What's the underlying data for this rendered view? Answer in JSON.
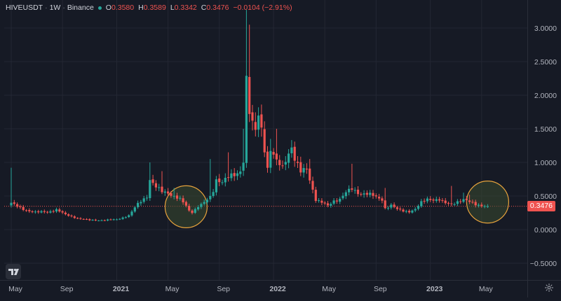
{
  "header": {
    "symbol": "HIVEUSDT",
    "interval": "1W",
    "exchange": "Binance",
    "open_label": "O",
    "open_value": "0.3580",
    "high_label": "H",
    "high_value": "0.3589",
    "low_label": "L",
    "low_value": "0.3342",
    "close_label": "C",
    "close_value": "0.3476",
    "change": "−0.0104 (−2.91%)"
  },
  "last_price_label": "0.3476",
  "colors": {
    "background": "#161a25",
    "grid": "#232733",
    "up": "#26a69a",
    "down": "#ef5350",
    "text": "#b2b5be",
    "circle_stroke": "#e6a23c",
    "circle_fill": "#3a4a2f"
  },
  "icons": {
    "logo": "tradingview-logo-icon",
    "settings": "gear-icon"
  },
  "chart_data": {
    "type": "candlestick",
    "ylim": [
      -0.6,
      3.2
    ],
    "y_ticks": [
      "3.0000",
      "2.5000",
      "2.0000",
      "1.5000",
      "1.0000",
      "0.5000",
      "0.0000",
      "−0.5000"
    ],
    "y_tick_values": [
      3.0,
      2.5,
      2.0,
      1.5,
      1.0,
      0.5,
      0.0,
      -0.5
    ],
    "x_ticks": [
      "May",
      "Sep",
      "2021",
      "May",
      "Sep",
      "2022",
      "May",
      "Sep",
      "2023",
      "May"
    ],
    "x_tick_bold": [
      false,
      false,
      true,
      false,
      false,
      true,
      false,
      false,
      true,
      false
    ],
    "x_tick_week_index": [
      0,
      17,
      35,
      52,
      69,
      87,
      104,
      121,
      139,
      156
    ],
    "last_price": 0.3476,
    "highlight_circles": [
      {
        "week_index": 58,
        "price": 0.34
      },
      {
        "week_index": 158,
        "price": 0.41
      }
    ],
    "close_anchors": [
      [
        0,
        0.4
      ],
      [
        2,
        0.34
      ],
      [
        4,
        0.3
      ],
      [
        8,
        0.26
      ],
      [
        12,
        0.26
      ],
      [
        15,
        0.3
      ],
      [
        18,
        0.22
      ],
      [
        22,
        0.17
      ],
      [
        26,
        0.14
      ],
      [
        30,
        0.14
      ],
      [
        35,
        0.15
      ],
      [
        39,
        0.21
      ],
      [
        42,
        0.38
      ],
      [
        45,
        0.5
      ],
      [
        46,
        0.75
      ],
      [
        48,
        0.63
      ],
      [
        50,
        0.56
      ],
      [
        52,
        0.55
      ],
      [
        54,
        0.5
      ],
      [
        56,
        0.45
      ],
      [
        58,
        0.35
      ],
      [
        59,
        0.28
      ],
      [
        60,
        0.26
      ],
      [
        62,
        0.35
      ],
      [
        64,
        0.4
      ],
      [
        66,
        0.48
      ],
      [
        67,
        0.58
      ],
      [
        68,
        0.75
      ],
      [
        70,
        0.72
      ],
      [
        72,
        0.78
      ],
      [
        74,
        0.8
      ],
      [
        76,
        0.88
      ],
      [
        77,
        1.05
      ],
      [
        78,
        2.25
      ],
      [
        79,
        1.75
      ],
      [
        80,
        1.55
      ],
      [
        81,
        1.45
      ],
      [
        82,
        1.7
      ],
      [
        83,
        1.5
      ],
      [
        84,
        1.22
      ],
      [
        85,
        0.92
      ],
      [
        86,
        1.2
      ],
      [
        87,
        1.1
      ],
      [
        88,
        1.0
      ],
      [
        90,
        0.92
      ],
      [
        91,
        1.05
      ],
      [
        93,
        1.25
      ],
      [
        94,
        1.05
      ],
      [
        96,
        0.85
      ],
      [
        98,
        0.9
      ],
      [
        99,
        0.75
      ],
      [
        101,
        0.45
      ],
      [
        103,
        0.4
      ],
      [
        105,
        0.35
      ],
      [
        107,
        0.43
      ],
      [
        109,
        0.46
      ],
      [
        111,
        0.55
      ],
      [
        113,
        0.6
      ],
      [
        115,
        0.55
      ],
      [
        117,
        0.54
      ],
      [
        119,
        0.52
      ],
      [
        121,
        0.48
      ],
      [
        123,
        0.45
      ],
      [
        124,
        0.32
      ],
      [
        126,
        0.36
      ],
      [
        128,
        0.3
      ],
      [
        130,
        0.28
      ],
      [
        132,
        0.27
      ],
      [
        134,
        0.3
      ],
      [
        136,
        0.4
      ],
      [
        138,
        0.46
      ],
      [
        140,
        0.45
      ],
      [
        142,
        0.44
      ],
      [
        144,
        0.39
      ],
      [
        146,
        0.38
      ],
      [
        148,
        0.42
      ],
      [
        150,
        0.44
      ],
      [
        152,
        0.41
      ],
      [
        154,
        0.38
      ],
      [
        156,
        0.36
      ],
      [
        158,
        0.3476
      ]
    ],
    "spikes": [
      [
        0,
        0.92
      ],
      [
        46,
        1.0
      ],
      [
        50,
        0.87
      ],
      [
        54,
        0.62
      ],
      [
        66,
        1.05
      ],
      [
        72,
        1.15
      ],
      [
        77,
        1.5
      ],
      [
        78,
        3.27
      ],
      [
        79,
        3.05
      ],
      [
        82,
        1.82
      ],
      [
        86,
        1.35
      ],
      [
        88,
        1.5
      ],
      [
        93,
        1.3
      ],
      [
        96,
        1.05
      ],
      [
        99,
        1.05
      ],
      [
        113,
        0.98
      ],
      [
        124,
        0.62
      ],
      [
        146,
        0.65
      ],
      [
        150,
        0.55
      ],
      [
        152,
        0.52
      ]
    ]
  }
}
